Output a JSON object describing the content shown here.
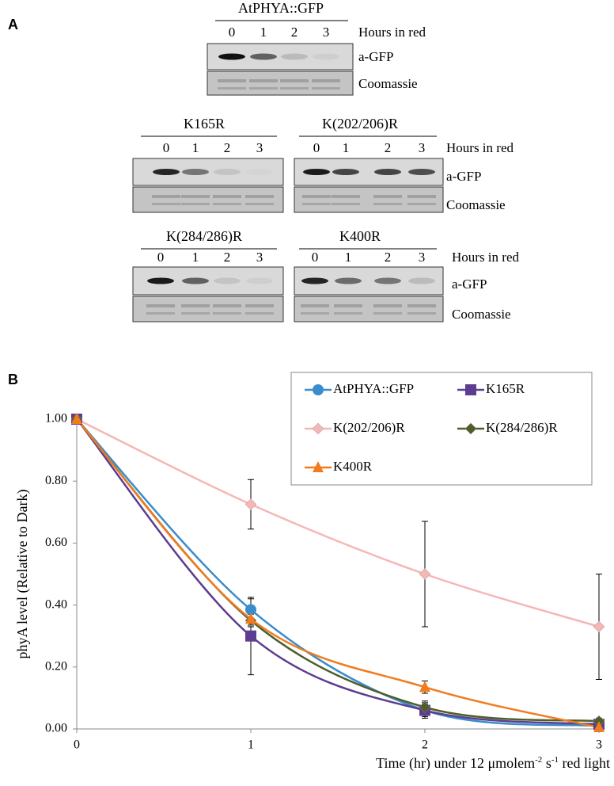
{
  "panel_a": {
    "label": "A",
    "blots": [
      {
        "title": "AtPHYA::GFP",
        "lanes": [
          "0",
          "1",
          "2",
          "3"
        ]
      },
      {
        "title": "K165R",
        "lanes": [
          "0",
          "1",
          "2",
          "3"
        ]
      },
      {
        "title": "K(202/206)R",
        "lanes": [
          "0",
          "1",
          "2",
          "3"
        ]
      },
      {
        "title": "K(284/286)R",
        "lanes": [
          "0",
          "1",
          "2",
          "3"
        ]
      },
      {
        "title": "K400R",
        "lanes": [
          "0",
          "1",
          "2",
          "3"
        ]
      }
    ],
    "rows": [
      {
        "hours_label": "Hours in red",
        "antibody_label": "a-GFP",
        "stain_label": "Coomassie"
      },
      {
        "hours_label": "Hours in red",
        "antibody_label": "a-GFP",
        "stain_label": "Coomassie"
      },
      {
        "hours_label": "Hours in red",
        "antibody_label": "a-GFP",
        "stain_label": "Coomassie"
      }
    ]
  },
  "panel_b_label": "B",
  "chart_data": {
    "type": "line",
    "x_label_parts": [
      "Time (hr) under 12 μmolem",
      "-2",
      " s",
      "-1",
      " red light"
    ],
    "y_label": "phyA level (Relative to Dark)",
    "x": [
      0,
      1,
      2,
      3
    ],
    "xlim": [
      0,
      3
    ],
    "xticks": [
      0,
      1,
      2,
      3
    ],
    "ylim": [
      0,
      1
    ],
    "yticks": [
      {
        "value": 0,
        "label": "0.00"
      },
      {
        "value": 0.2,
        "label": "0.20"
      },
      {
        "value": 0.4,
        "label": "0.40"
      },
      {
        "value": 0.6,
        "label": "0.60"
      },
      {
        "value": 0.8,
        "label": "0.80"
      },
      {
        "value": 1,
        "label": "1.00"
      }
    ],
    "smooth": true,
    "series": [
      {
        "name": "AtPHYA::GFP",
        "color": "#3a8ccc",
        "marker": "circle",
        "values": [
          1,
          0.385,
          0.06,
          0.01
        ],
        "errors": [
          0,
          0.035,
          0.02,
          0.005
        ]
      },
      {
        "name": "K165R",
        "color": "#5c3d8f",
        "marker": "square",
        "values": [
          1,
          0.3,
          0.06,
          0.015
        ],
        "errors": [
          0,
          0.125,
          0.025,
          0.01
        ]
      },
      {
        "name": "K(202/206)R",
        "color": "#f5b7b5",
        "marker": "diamond",
        "values": [
          1,
          0.725,
          0.5,
          0.33
        ],
        "errors": [
          0,
          0.08,
          0.17,
          0.17
        ]
      },
      {
        "name": "K(284/286)R",
        "color": "#4e5e2a",
        "marker": "diamond",
        "values": [
          1,
          0.35,
          0.07,
          0.025
        ],
        "errors": [
          0,
          0.02,
          0.02,
          0.01
        ]
      },
      {
        "name": "K400R",
        "color": "#f07c1f",
        "marker": "triangle",
        "values": [
          1,
          0.355,
          0.135,
          0.005
        ],
        "errors": [
          0,
          0.02,
          0.02,
          0.005
        ]
      }
    ]
  }
}
